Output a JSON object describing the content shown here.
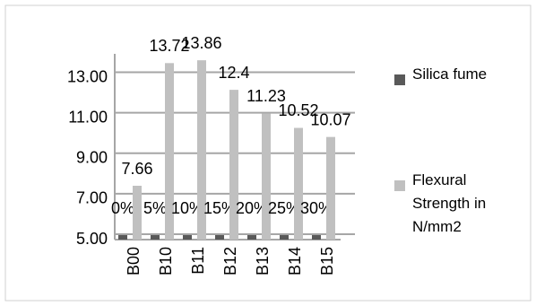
{
  "chart_data": {
    "type": "bar",
    "categories": [
      "B00",
      "B10",
      "B11",
      "B12",
      "B13",
      "B14",
      "B15"
    ],
    "series": [
      {
        "name": "Silica fume",
        "color": "#595959",
        "values": [
          0,
          0.05,
          0.1,
          0.15,
          0.2,
          0.25,
          0.3
        ],
        "value_labels": [
          "0%",
          "5%",
          "10%",
          "15%",
          "20%",
          "25%",
          "30%"
        ]
      },
      {
        "name": "Flexural Strength in N/mm2",
        "color": "#c0c0c0",
        "values": [
          7.66,
          13.72,
          13.86,
          12.4,
          11.23,
          10.52,
          10.07
        ]
      }
    ],
    "ylim": [
      5,
      14
    ],
    "yticks": [
      {
        "value": 5,
        "label": "5.00"
      },
      {
        "value": 7,
        "label": "7.00"
      },
      {
        "value": 9,
        "label": "9.00"
      },
      {
        "value": 11,
        "label": "11.00"
      },
      {
        "value": 13,
        "label": "13.00"
      }
    ],
    "grid": true,
    "legend": "right"
  }
}
